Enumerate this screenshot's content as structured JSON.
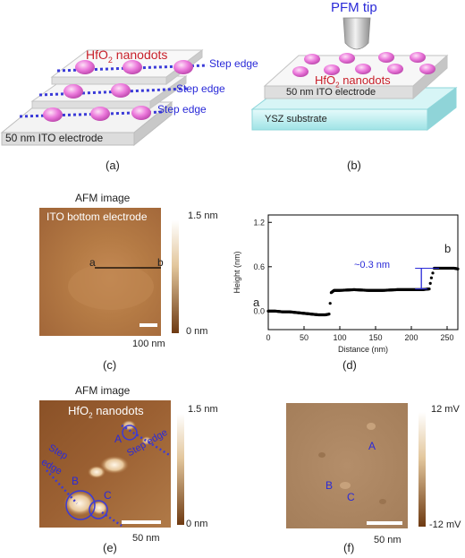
{
  "panel_a": {
    "nanodots_label": "HfO",
    "nanodots_sub": "2",
    "nanodots_suffix": " nanodots",
    "step_edge_labels": [
      "Step edge",
      "Step edge",
      "Step edge"
    ],
    "electrode_label": "50 nm ITO electrode",
    "caption": "(a)"
  },
  "panel_b": {
    "tip_label": "PFM tip",
    "nanodots_label": "HfO",
    "nanodots_sub": "2",
    "nanodots_suffix": " nanodots",
    "electrode_label": "50 nm ITO electrode",
    "substrate_label": "YSZ substrate",
    "caption": "(b)"
  },
  "panel_c": {
    "title": "AFM image",
    "overlay": "ITO bottom electrode",
    "point_a": "a",
    "point_b": "b",
    "scale_top": "1.5 nm",
    "scale_bottom": "0 nm",
    "scalebar": "100 nm",
    "caption": "(c)"
  },
  "panel_d": {
    "caption": "(d)",
    "annotation": "~0.3 nm",
    "point_a": "a",
    "point_b": "b"
  },
  "panel_e": {
    "title": "AFM image",
    "overlay_main": "HfO",
    "overlay_sub": "2",
    "overlay_suffix": " nanodots",
    "step_edge_1": "Step edge",
    "step_edge_2_line1": "Step",
    "step_edge_2_line2": "edge",
    "label_a": "A",
    "label_b": "B",
    "label_c": "C",
    "scale_top": "1.5 nm",
    "scale_bottom": "0 nm",
    "scalebar": "50 nm",
    "caption": "(e)"
  },
  "panel_f": {
    "label_a": "A",
    "label_b": "B",
    "label_c": "C",
    "scale_top": "12 mV",
    "scale_bottom": "-12 mV",
    "scalebar": "50 nm",
    "caption": "(f)"
  },
  "chart_data": {
    "type": "scatter",
    "title": "",
    "xlabel": "Distance (nm)",
    "ylabel": "Height (nm)",
    "xlim": [
      0,
      265
    ],
    "ylim": [
      -0.25,
      1.3
    ],
    "xticks": [
      0,
      50,
      100,
      150,
      200,
      250
    ],
    "yticks": [
      0.0,
      0.6,
      1.2
    ],
    "ytick_labels": [
      "0.0",
      "0.6",
      "1.2"
    ],
    "grid": false,
    "series": [
      {
        "x": [
          0,
          10,
          20,
          30,
          40,
          50,
          60,
          70,
          80,
          85,
          88,
          92,
          100,
          120,
          140,
          160,
          180,
          200,
          215,
          225,
          228,
          232,
          240,
          250,
          260,
          265
        ],
        "y": [
          0.0,
          0.0,
          -0.01,
          -0.01,
          -0.02,
          -0.03,
          -0.04,
          -0.05,
          -0.05,
          -0.04,
          0.25,
          0.28,
          0.28,
          0.29,
          0.28,
          0.28,
          0.29,
          0.29,
          0.29,
          0.3,
          0.45,
          0.58,
          0.58,
          0.58,
          0.58,
          0.57
        ]
      }
    ]
  }
}
